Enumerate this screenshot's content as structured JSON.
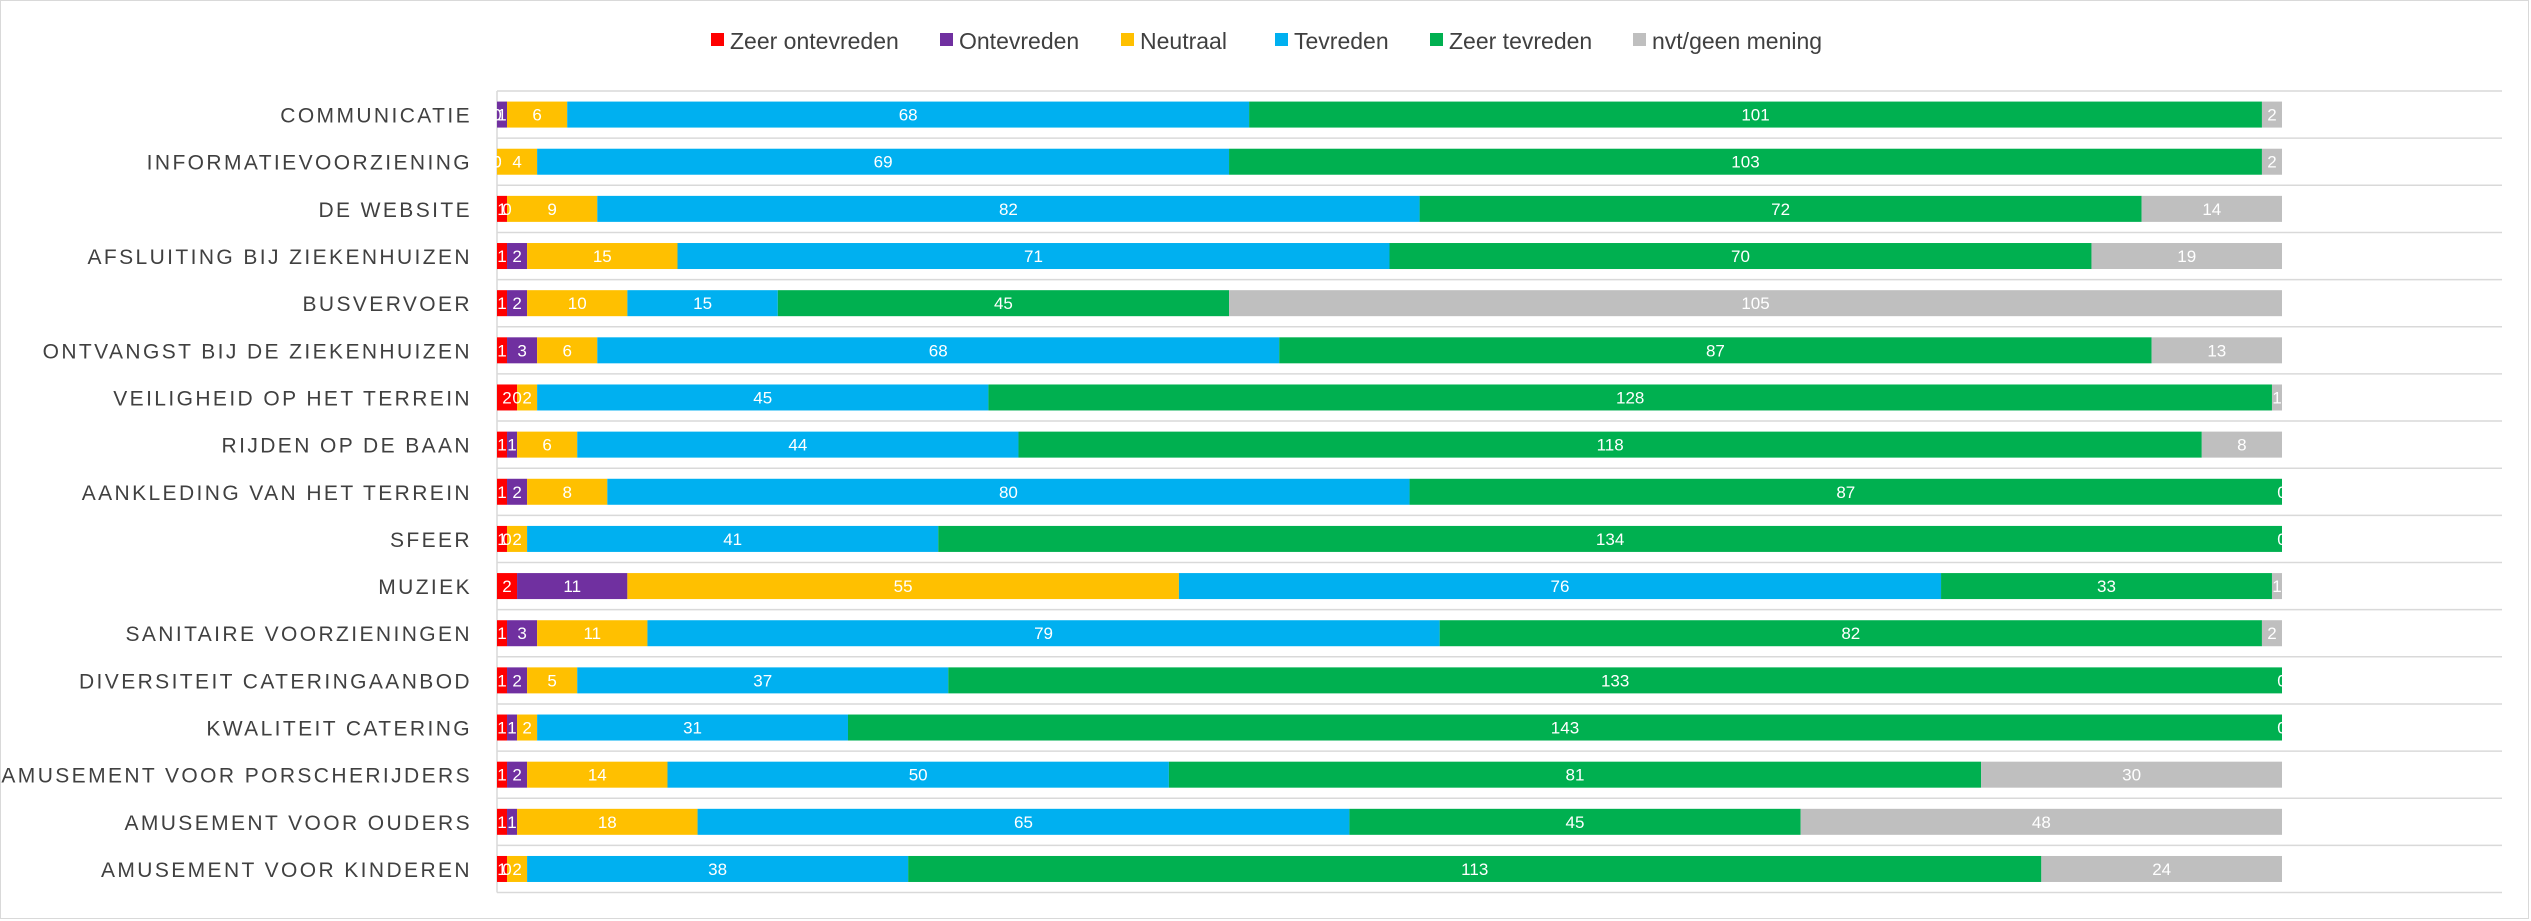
{
  "chart_data": {
    "type": "bar",
    "orientation": "horizontal",
    "stacked": "100%",
    "legend_position": "top",
    "grid": true,
    "colors": {
      "Zeer ontevreden": "#ff0000",
      "Ontevreden": "#7030a0",
      "Neutraal": "#ffc000",
      "Tevreden": "#00b0f0",
      "Zeer tevreden": "#00b050",
      "nvt/geen mening": "#bfbfbf"
    },
    "categories": [
      "COMMUNICATIE",
      "INFORMATIEVOORZIENING",
      "DE WEBSITE",
      "AFSLUITING BIJ ZIEKENHUIZEN",
      "BUSVERVOER",
      "ONTVANGST BIJ DE ZIEKENHUIZEN",
      "VEILIGHEID OP HET TERREIN",
      "RIJDEN OP DE BAAN",
      "AANKLEDING VAN HET TERREIN",
      "SFEER",
      "MUZIEK",
      "SANITAIRE VOORZIENINGEN",
      "DIVERSITEIT CATERINGAANBOD",
      "KWALITEIT CATERING",
      "AMUSEMENT VOOR PORSCHERIJDERS",
      "AMUSEMENT VOOR OUDERS",
      "AMUSEMENT VOOR KINDEREN"
    ],
    "series": [
      {
        "name": "Zeer ontevreden",
        "values": [
          0,
          0,
          1,
          1,
          1,
          1,
          2,
          1,
          1,
          1,
          2,
          1,
          1,
          1,
          1,
          1,
          1
        ]
      },
      {
        "name": "Ontevreden",
        "values": [
          1,
          0,
          0,
          2,
          2,
          3,
          0,
          1,
          2,
          0,
          11,
          3,
          2,
          1,
          2,
          1,
          0
        ]
      },
      {
        "name": "Neutraal",
        "values": [
          6,
          4,
          9,
          15,
          10,
          6,
          2,
          6,
          8,
          2,
          55,
          11,
          5,
          2,
          14,
          18,
          2
        ]
      },
      {
        "name": "Tevreden",
        "values": [
          68,
          69,
          82,
          71,
          15,
          68,
          45,
          44,
          80,
          41,
          76,
          79,
          37,
          31,
          50,
          65,
          38
        ]
      },
      {
        "name": "Zeer tevreden",
        "values": [
          101,
          103,
          72,
          70,
          45,
          87,
          128,
          118,
          87,
          134,
          33,
          82,
          133,
          143,
          81,
          45,
          113
        ]
      },
      {
        "name": "nvt/geen mening",
        "values": [
          2,
          2,
          14,
          19,
          105,
          13,
          1,
          8,
          0,
          0,
          1,
          2,
          0,
          0,
          30,
          48,
          24
        ]
      }
    ]
  }
}
